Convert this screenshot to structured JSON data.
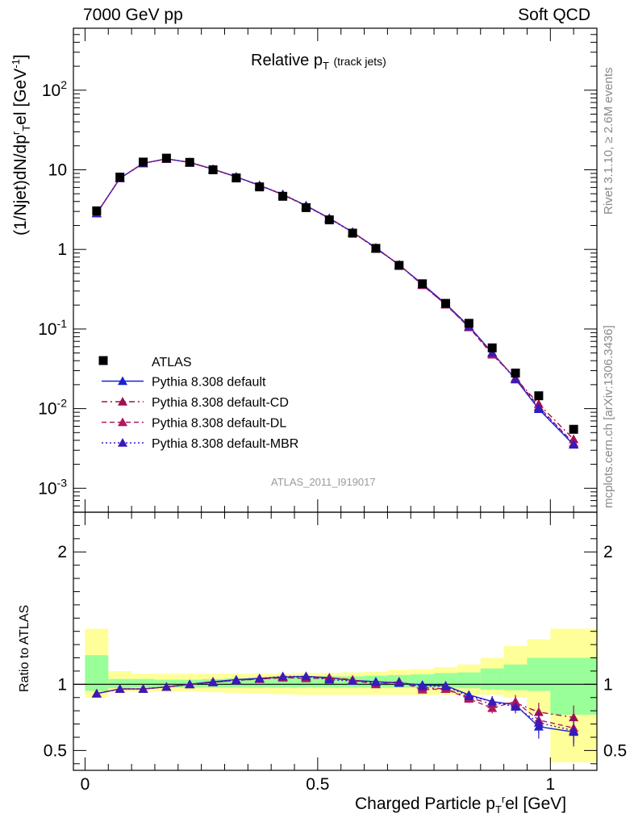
{
  "header": {
    "left": "7000 GeV pp",
    "right": "Soft QCD"
  },
  "side_labels": {
    "top": "Rivet 3.1.10, ≥ 2.6M events",
    "bottom": "mcplots.cern.ch [arXiv:1306.3436]"
  },
  "analysis_label": "ATLAS_2011_I919017",
  "chart_data": {
    "type": "line",
    "title": {
      "main": "Relative p",
      "sub": "T",
      "note": "(track jets)"
    },
    "xlabel": {
      "main": "Charged Particle p",
      "sub": "T",
      "sup": "r",
      "tail": "el [GeV]"
    },
    "ylabel_main": {
      "pre": "(1/Njet)dN/dp",
      "sup": "r",
      "sub": "T",
      "mid": "el [GeV",
      "sup2": "-1",
      "post": "]"
    },
    "ylabel_ratio": "Ratio to ATLAS",
    "xlim": [
      -0.025,
      1.1
    ],
    "ylim": [
      0.0005,
      600
    ],
    "yscale": "log",
    "ratio_ylim": [
      0.35,
      2.3
    ],
    "x_ticks": [
      "0",
      "0.5",
      "1"
    ],
    "y_ticks": [
      "10^-3",
      "10^-2",
      "10^-1",
      "1",
      "10",
      "10^2"
    ],
    "ratio_ticks": [
      "0.5",
      "1",
      "2"
    ],
    "legend_position": "bottom-left",
    "x": [
      0.025,
      0.075,
      0.125,
      0.175,
      0.225,
      0.275,
      0.325,
      0.375,
      0.425,
      0.475,
      0.525,
      0.575,
      0.625,
      0.675,
      0.725,
      0.775,
      0.825,
      0.875,
      0.925,
      0.975,
      1.05
    ],
    "atlas": {
      "name": "ATLAS",
      "color": "#000000",
      "values": [
        3.05,
        8.1,
        12.5,
        14.0,
        12.4,
        10.0,
        7.9,
        6.1,
        4.65,
        3.35,
        2.35,
        1.6,
        1.03,
        0.63,
        0.37,
        0.21,
        0.118,
        0.058,
        0.028,
        0.0145,
        0.0055
      ]
    },
    "mc_band": [
      {
        "lo": 0.95,
        "hi": 1.22
      },
      {
        "lo": 0.97,
        "hi": 1.04
      },
      {
        "lo": 0.975,
        "hi": 1.04
      },
      {
        "lo": 0.975,
        "hi": 1.035
      },
      {
        "lo": 0.975,
        "hi": 1.035
      },
      {
        "lo": 0.975,
        "hi": 1.04
      },
      {
        "lo": 0.975,
        "hi": 1.045
      },
      {
        "lo": 0.975,
        "hi": 1.05
      },
      {
        "lo": 0.975,
        "hi": 1.055
      },
      {
        "lo": 0.975,
        "hi": 1.055
      },
      {
        "lo": 0.975,
        "hi": 1.06
      },
      {
        "lo": 0.975,
        "hi": 1.06
      },
      {
        "lo": 0.975,
        "hi": 1.065
      },
      {
        "lo": 0.975,
        "hi": 1.07
      },
      {
        "lo": 0.975,
        "hi": 1.075
      },
      {
        "lo": 0.975,
        "hi": 1.085
      },
      {
        "lo": 0.97,
        "hi": 1.09
      },
      {
        "lo": 0.96,
        "hi": 1.12
      },
      {
        "lo": 0.955,
        "hi": 1.15
      },
      {
        "lo": 0.95,
        "hi": 1.2
      },
      {
        "lo": 0.77,
        "hi": 1.2
      }
    ],
    "tot_band": [
      {
        "lo": 0.9,
        "hi": 1.42
      },
      {
        "lo": 0.945,
        "hi": 1.1
      },
      {
        "lo": 0.945,
        "hi": 1.08
      },
      {
        "lo": 0.945,
        "hi": 1.08
      },
      {
        "lo": 0.945,
        "hi": 1.08
      },
      {
        "lo": 0.94,
        "hi": 1.08
      },
      {
        "lo": 0.935,
        "hi": 1.08
      },
      {
        "lo": 0.93,
        "hi": 1.08
      },
      {
        "lo": 0.925,
        "hi": 1.08
      },
      {
        "lo": 0.92,
        "hi": 1.085
      },
      {
        "lo": 0.92,
        "hi": 1.085
      },
      {
        "lo": 0.92,
        "hi": 1.09
      },
      {
        "lo": 0.92,
        "hi": 1.095
      },
      {
        "lo": 0.92,
        "hi": 1.11
      },
      {
        "lo": 0.92,
        "hi": 1.115
      },
      {
        "lo": 0.92,
        "hi": 1.13
      },
      {
        "lo": 0.92,
        "hi": 1.15
      },
      {
        "lo": 0.92,
        "hi": 1.2
      },
      {
        "lo": 0.9,
        "hi": 1.29
      },
      {
        "lo": 0.78,
        "hi": 1.34
      },
      {
        "lo": 0.41,
        "hi": 1.42
      }
    ],
    "series": [
      {
        "name": "Pythia 8.308 default",
        "color": "#1a22d6",
        "dash": "",
        "ratio": [
          0.93,
          0.965,
          0.965,
          0.98,
          1.0,
          1.02,
          1.035,
          1.045,
          1.055,
          1.06,
          1.05,
          1.03,
          1.02,
          1.01,
          0.995,
          0.99,
          0.92,
          0.87,
          0.845,
          0.68,
          0.64
        ],
        "ratio_err": [
          0.01,
          0.008,
          0.007,
          0.006,
          0.006,
          0.006,
          0.006,
          0.007,
          0.008,
          0.009,
          0.01,
          0.012,
          0.014,
          0.016,
          0.02,
          0.024,
          0.03,
          0.04,
          0.05,
          0.09,
          0.11
        ]
      },
      {
        "name": "Pythia 8.308 default-CD",
        "color": "#a01050",
        "dash": "7,4,2,4",
        "ratio": [
          0.93,
          0.965,
          0.965,
          0.98,
          1.0,
          1.015,
          1.03,
          1.04,
          1.05,
          1.055,
          1.05,
          1.035,
          1.0,
          1.02,
          0.975,
          0.965,
          0.9,
          0.85,
          0.86,
          0.79,
          0.75
        ],
        "ratio_err": [
          0.01,
          0.008,
          0.007,
          0.006,
          0.006,
          0.006,
          0.006,
          0.007,
          0.008,
          0.009,
          0.01,
          0.012,
          0.014,
          0.016,
          0.02,
          0.024,
          0.03,
          0.04,
          0.05,
          0.07,
          0.09
        ]
      },
      {
        "name": "Pythia 8.308 default-DL",
        "color": "#b0185e",
        "dash": "6,4",
        "ratio": [
          0.93,
          0.965,
          0.965,
          0.98,
          1.0,
          1.015,
          1.03,
          1.04,
          1.05,
          1.045,
          1.045,
          1.03,
          1.0,
          1.02,
          0.96,
          0.965,
          0.89,
          0.82,
          0.87,
          0.73,
          0.67
        ],
        "ratio_err": [
          0.01,
          0.008,
          0.007,
          0.006,
          0.006,
          0.006,
          0.006,
          0.007,
          0.008,
          0.009,
          0.01,
          0.012,
          0.014,
          0.016,
          0.02,
          0.024,
          0.03,
          0.04,
          0.05,
          0.08,
          0.1
        ]
      },
      {
        "name": "Pythia 8.308 default-MBR",
        "color": "#3a1ab8",
        "dash": "2,3",
        "ratio": [
          0.93,
          0.965,
          0.965,
          0.98,
          1.0,
          1.015,
          1.03,
          1.045,
          1.06,
          1.06,
          1.035,
          1.025,
          1.015,
          1.015,
          0.985,
          0.985,
          0.91,
          0.87,
          0.83,
          0.71,
          0.65
        ],
        "ratio_err": [
          0.01,
          0.008,
          0.007,
          0.006,
          0.006,
          0.006,
          0.006,
          0.007,
          0.008,
          0.009,
          0.01,
          0.012,
          0.014,
          0.016,
          0.02,
          0.024,
          0.03,
          0.04,
          0.05,
          0.08,
          0.1
        ]
      }
    ]
  }
}
